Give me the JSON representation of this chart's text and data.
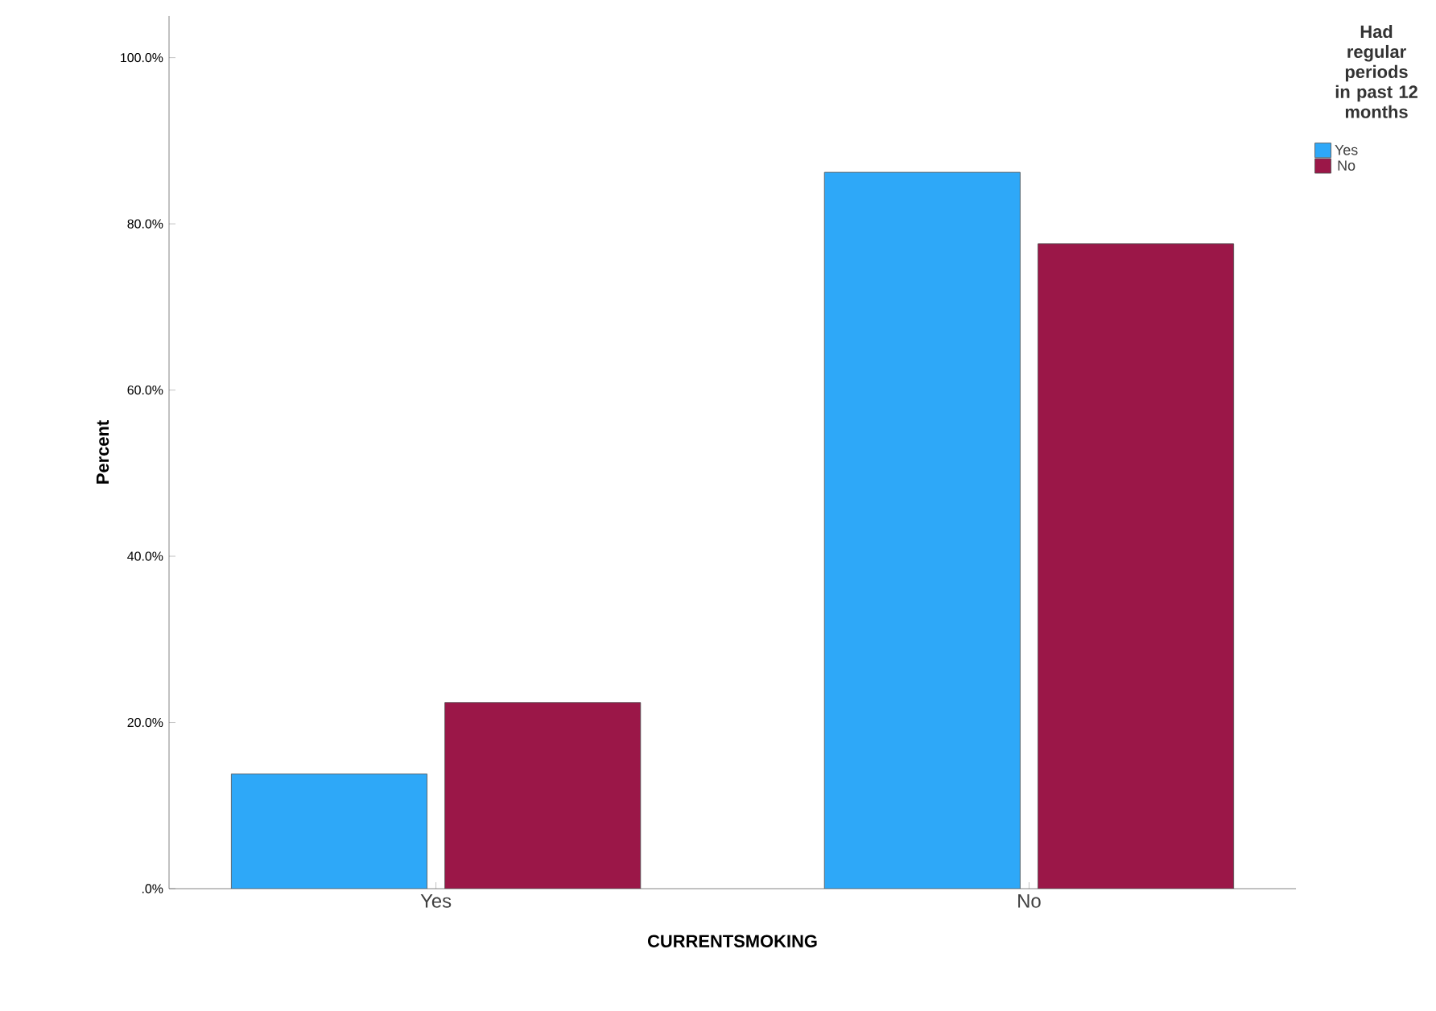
{
  "chart_data": {
    "type": "bar",
    "xlabel": "CURRENTSMOKING",
    "ylabel": "Percent",
    "legend_title": "Had regular periods in past 12 months",
    "categories": [
      "Yes",
      "No"
    ],
    "series": [
      {
        "name": "Yes",
        "color": "#2ea8f8",
        "values": [
          13.8,
          86.2
        ]
      },
      {
        "name": "No",
        "color": "#9b1748",
        "values": [
          22.4,
          77.6
        ]
      }
    ],
    "ylim": [
      0,
      105
    ],
    "yticks": [
      {
        "value": 0,
        "label": ".0%"
      },
      {
        "value": 20,
        "label": "20.0%"
      },
      {
        "value": 40,
        "label": "40.0%"
      },
      {
        "value": 60,
        "label": "60.0%"
      },
      {
        "value": 80,
        "label": "80.0%"
      },
      {
        "value": 100,
        "label": "100.0%"
      }
    ],
    "grid": false,
    "legend": "top right"
  }
}
